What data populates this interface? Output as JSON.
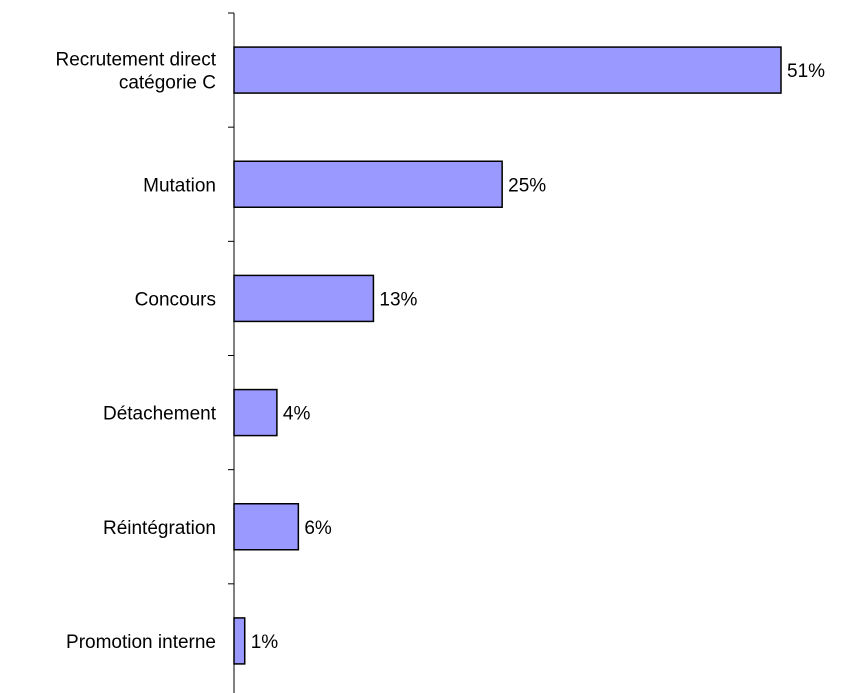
{
  "chart_data": {
    "type": "bar",
    "orientation": "horizontal",
    "categories": [
      [
        "Recrutement direct",
        "catégorie C"
      ],
      [
        "Mutation"
      ],
      [
        "Concours"
      ],
      [
        "Détachement"
      ],
      [
        "Réintégration"
      ],
      [
        "Promotion interne"
      ]
    ],
    "values": [
      51,
      25,
      13,
      4,
      6,
      1
    ],
    "value_labels": [
      "51%",
      "25%",
      "13%",
      "4%",
      "6%",
      "1%"
    ],
    "title": "",
    "xlabel": "",
    "ylabel": "",
    "xlim": [
      0,
      51
    ],
    "grid": false,
    "legend": "none",
    "colors": {
      "bar_fill": "#9999ff",
      "bar_stroke": "#000000",
      "axis": "#000000",
      "text": "#000000"
    }
  }
}
